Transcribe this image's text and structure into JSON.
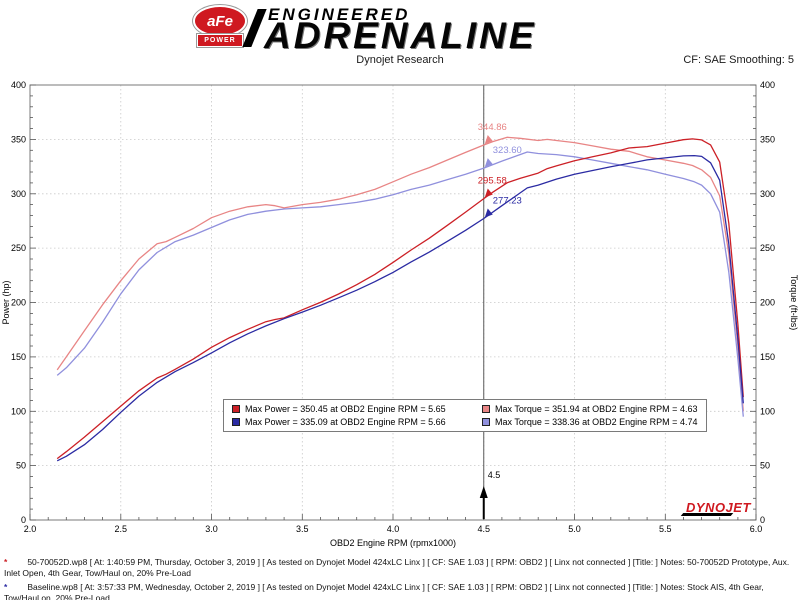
{
  "header": {
    "logo_afe": "aFe",
    "logo_power": "POWER",
    "brand_line1": "ENGINEERED",
    "brand_line2": "ADRENALINE",
    "subtitle": "Dynojet Research",
    "cf_label": "CF: SAE Smoothing: 5"
  },
  "chart_data": {
    "type": "line",
    "xlabel": "OBD2 Engine RPM (rpmx1000)",
    "ylabel_left": "Power (hp)",
    "ylabel_right": "Torque (ft-lbs)",
    "xlim": [
      2.0,
      6.0
    ],
    "ylim": [
      0,
      400
    ],
    "x_major_step": 0.5,
    "y_major_step": 50,
    "grid": true,
    "legend_position": "bottom-center",
    "cursor": {
      "x": 4.5,
      "label": "4.5"
    },
    "series": [
      {
        "id": "torque-50-70052d",
        "name": "Torque 50-70052D",
        "axis": "right",
        "color": "#e88585",
        "points": [
          [
            2.15,
            138
          ],
          [
            2.2,
            150
          ],
          [
            2.3,
            174
          ],
          [
            2.4,
            198
          ],
          [
            2.5,
            220
          ],
          [
            2.6,
            240
          ],
          [
            2.7,
            254
          ],
          [
            2.75,
            256
          ],
          [
            2.8,
            260
          ],
          [
            2.9,
            268
          ],
          [
            3.0,
            278
          ],
          [
            3.1,
            284
          ],
          [
            3.2,
            288
          ],
          [
            3.3,
            290
          ],
          [
            3.35,
            289
          ],
          [
            3.4,
            287
          ],
          [
            3.5,
            290
          ],
          [
            3.6,
            292
          ],
          [
            3.7,
            295
          ],
          [
            3.8,
            299
          ],
          [
            3.9,
            304
          ],
          [
            4.0,
            311
          ],
          [
            4.1,
            318
          ],
          [
            4.2,
            324
          ],
          [
            4.3,
            331
          ],
          [
            4.4,
            338
          ],
          [
            4.5,
            344.86
          ],
          [
            4.55,
            348
          ],
          [
            4.63,
            351.94
          ],
          [
            4.7,
            351
          ],
          [
            4.8,
            349
          ],
          [
            4.85,
            350
          ],
          [
            4.9,
            349
          ],
          [
            5.0,
            347
          ],
          [
            5.1,
            344
          ],
          [
            5.2,
            341
          ],
          [
            5.3,
            339
          ],
          [
            5.4,
            334
          ],
          [
            5.5,
            331
          ],
          [
            5.6,
            328
          ],
          [
            5.65,
            326
          ],
          [
            5.7,
            322
          ],
          [
            5.75,
            315
          ],
          [
            5.8,
            298
          ],
          [
            5.85,
            245
          ],
          [
            5.9,
            160
          ],
          [
            5.93,
            100
          ]
        ]
      },
      {
        "id": "torque-baseline",
        "name": "Torque Baseline",
        "axis": "right",
        "color": "#9090dd",
        "points": [
          [
            2.15,
            133
          ],
          [
            2.2,
            140
          ],
          [
            2.3,
            158
          ],
          [
            2.4,
            182
          ],
          [
            2.5,
            208
          ],
          [
            2.6,
            230
          ],
          [
            2.7,
            246
          ],
          [
            2.8,
            256
          ],
          [
            2.9,
            262
          ],
          [
            3.0,
            269
          ],
          [
            3.1,
            276
          ],
          [
            3.2,
            281
          ],
          [
            3.3,
            284
          ],
          [
            3.4,
            286
          ],
          [
            3.5,
            287
          ],
          [
            3.6,
            288
          ],
          [
            3.7,
            290
          ],
          [
            3.8,
            292
          ],
          [
            3.9,
            295
          ],
          [
            4.0,
            299
          ],
          [
            4.1,
            304
          ],
          [
            4.2,
            308
          ],
          [
            4.3,
            313
          ],
          [
            4.4,
            318
          ],
          [
            4.5,
            323.6
          ],
          [
            4.6,
            330
          ],
          [
            4.7,
            336
          ],
          [
            4.74,
            338.36
          ],
          [
            4.8,
            337
          ],
          [
            4.9,
            336
          ],
          [
            5.0,
            334
          ],
          [
            5.1,
            331
          ],
          [
            5.2,
            328
          ],
          [
            5.3,
            325
          ],
          [
            5.4,
            322
          ],
          [
            5.5,
            318
          ],
          [
            5.6,
            314
          ],
          [
            5.66,
            311
          ],
          [
            5.7,
            308
          ],
          [
            5.75,
            300
          ],
          [
            5.8,
            283
          ],
          [
            5.85,
            228
          ],
          [
            5.9,
            148
          ],
          [
            5.93,
            95
          ]
        ]
      },
      {
        "id": "power-50-70052d",
        "name": "Power 50-70052D",
        "axis": "left",
        "color": "#cc2026",
        "points": [
          [
            2.15,
            56.5
          ],
          [
            2.2,
            62.8
          ],
          [
            2.3,
            76.2
          ],
          [
            2.4,
            90.5
          ],
          [
            2.5,
            104.7
          ],
          [
            2.6,
            118.8
          ],
          [
            2.7,
            130.6
          ],
          [
            2.75,
            134.1
          ],
          [
            2.8,
            138.6
          ],
          [
            2.9,
            148.0
          ],
          [
            3.0,
            158.8
          ],
          [
            3.1,
            167.7
          ],
          [
            3.2,
            175.4
          ],
          [
            3.3,
            182.3
          ],
          [
            3.35,
            184.4
          ],
          [
            3.4,
            185.8
          ],
          [
            3.5,
            193.3
          ],
          [
            3.6,
            200.1
          ],
          [
            3.7,
            207.8
          ],
          [
            3.8,
            216.4
          ],
          [
            3.9,
            225.8
          ],
          [
            4.0,
            236.9
          ],
          [
            4.1,
            248.3
          ],
          [
            4.2,
            259.1
          ],
          [
            4.3,
            271.0
          ],
          [
            4.4,
            283.1
          ],
          [
            4.5,
            295.58
          ],
          [
            4.55,
            301.4
          ],
          [
            4.63,
            310.2
          ],
          [
            4.7,
            314.1
          ],
          [
            4.8,
            319.0
          ],
          [
            4.85,
            323.1
          ],
          [
            4.9,
            325.6
          ],
          [
            5.0,
            330.4
          ],
          [
            5.1,
            334.1
          ],
          [
            5.2,
            337.6
          ],
          [
            5.3,
            342.1
          ],
          [
            5.4,
            343.4
          ],
          [
            5.5,
            346.6
          ],
          [
            5.6,
            349.7
          ],
          [
            5.65,
            350.45
          ],
          [
            5.7,
            349.5
          ],
          [
            5.75,
            344.9
          ],
          [
            5.8,
            329.1
          ],
          [
            5.85,
            272.9
          ],
          [
            5.9,
            179.7
          ],
          [
            5.93,
            112.9
          ]
        ]
      },
      {
        "id": "power-baseline",
        "name": "Power Baseline",
        "axis": "left",
        "color": "#2b2ba3",
        "points": [
          [
            2.15,
            54.4
          ],
          [
            2.2,
            58.6
          ],
          [
            2.3,
            69.2
          ],
          [
            2.4,
            83.2
          ],
          [
            2.5,
            99.0
          ],
          [
            2.6,
            113.9
          ],
          [
            2.7,
            126.5
          ],
          [
            2.8,
            136.5
          ],
          [
            2.9,
            144.7
          ],
          [
            3.0,
            153.7
          ],
          [
            3.1,
            162.9
          ],
          [
            3.2,
            171.2
          ],
          [
            3.3,
            178.5
          ],
          [
            3.4,
            185.1
          ],
          [
            3.5,
            191.2
          ],
          [
            3.6,
            197.4
          ],
          [
            3.7,
            204.3
          ],
          [
            3.8,
            211.3
          ],
          [
            3.9,
            219.1
          ],
          [
            4.0,
            227.7
          ],
          [
            4.1,
            237.3
          ],
          [
            4.2,
            246.3
          ],
          [
            4.3,
            256.3
          ],
          [
            4.4,
            266.4
          ],
          [
            4.5,
            277.23
          ],
          [
            4.6,
            289.0
          ],
          [
            4.7,
            300.7
          ],
          [
            4.74,
            305.4
          ],
          [
            4.8,
            308.0
          ],
          [
            4.9,
            313.5
          ],
          [
            5.0,
            318.0
          ],
          [
            5.1,
            321.4
          ],
          [
            5.2,
            324.8
          ],
          [
            5.3,
            327.9
          ],
          [
            5.4,
            331.1
          ],
          [
            5.5,
            333.0
          ],
          [
            5.6,
            334.8
          ],
          [
            5.66,
            335.09
          ],
          [
            5.7,
            334.3
          ],
          [
            5.75,
            328.5
          ],
          [
            5.8,
            312.4
          ],
          [
            5.85,
            253.9
          ],
          [
            5.9,
            166.2
          ],
          [
            5.93,
            107.3
          ]
        ]
      }
    ],
    "cursor_annotations": [
      {
        "text": "344.86",
        "value": 344.86,
        "color": "#e88585",
        "side": "left"
      },
      {
        "text": "323.60",
        "value": 323.6,
        "color": "#9090dd",
        "side": "right"
      },
      {
        "text": "295.58",
        "value": 295.58,
        "color": "#cc2026",
        "side": "left"
      },
      {
        "text": "277.23",
        "value": 277.23,
        "color": "#2b2ba3",
        "side": "right"
      }
    ],
    "legend": {
      "items": [
        {
          "text": "Max Power = 350.45 at OBD2 Engine RPM = 5.65",
          "color": "#cc2026"
        },
        {
          "text": "Max Torque = 351.94 at OBD2 Engine RPM = 4.63",
          "color": "#e88585"
        },
        {
          "text": "Max Power = 335.09 at OBD2 Engine RPM = 5.66",
          "color": "#2b2ba3"
        },
        {
          "text": "Max Torque = 338.36 at OBD2 Engine RPM = 4.74",
          "color": "#9090dd"
        }
      ]
    },
    "watermark": "DYNOJET"
  },
  "footnotes": [
    {
      "marker": "*",
      "marker_color": "#cc2026",
      "text": "50-70052D.wp8 [ At: 1:40:59 PM, Thursday, October 3, 2019 ] [ As tested on Dynojet Model 424xLC Linx ] [ CF: SAE 1.03 ] [ RPM: OBD2 ] [ Linx not connected ] [Title: ]  Notes: 50-70052D Prototype, Aux. Inlet Open, 4th Gear, Tow/Haul on, 20% Pre-Load"
    },
    {
      "marker": "*",
      "marker_color": "#2b2ba3",
      "text": "Baseline.wp8 [ At: 3:57:33 PM, Wednesday, October 2, 2019 ] [ As tested on Dynojet Model 424xLC Linx ] [ CF: SAE 1.03 ] [ RPM: OBD2 ] [ Linx not connected ] [Title: ]  Notes: Stock AIS, 4th Gear, Tow/Haul on, 20% Pre-Load"
    }
  ]
}
